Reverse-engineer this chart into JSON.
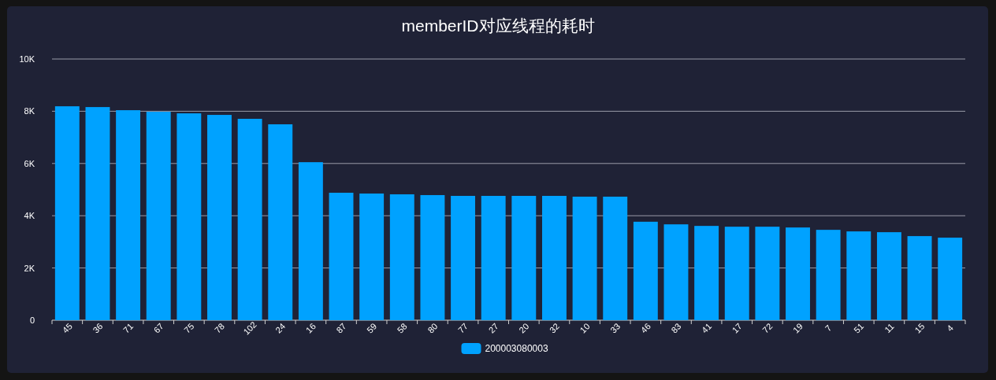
{
  "chart_data": {
    "type": "bar",
    "title": "memberID对应线程的耗时",
    "categories": [
      "45",
      "36",
      "71",
      "67",
      "75",
      "78",
      "102",
      "24",
      "16",
      "87",
      "59",
      "58",
      "80",
      "77",
      "27",
      "20",
      "32",
      "10",
      "33",
      "46",
      "83",
      "41",
      "17",
      "72",
      "19",
      "7",
      "51",
      "11",
      "15",
      "4"
    ],
    "series": [
      {
        "name": "200003080003",
        "color": "#00a2ff",
        "values": [
          8190,
          8160,
          8040,
          7980,
          7920,
          7860,
          7710,
          7500,
          6050,
          4880,
          4850,
          4820,
          4790,
          4760,
          4760,
          4760,
          4760,
          4730,
          4730,
          3770,
          3670,
          3610,
          3580,
          3580,
          3550,
          3460,
          3400,
          3370,
          3220,
          3160
        ]
      }
    ],
    "ylim": [
      0,
      10000
    ],
    "yticks": [
      0,
      {
        "value": 2000,
        "label": "2K"
      },
      {
        "value": 4000,
        "label": "4K"
      },
      {
        "value": 6000,
        "label": "6K"
      },
      {
        "value": 8000,
        "label": "8K"
      },
      {
        "value": 10000,
        "label": "10K"
      }
    ],
    "grid": "y",
    "legend": "bottom"
  }
}
